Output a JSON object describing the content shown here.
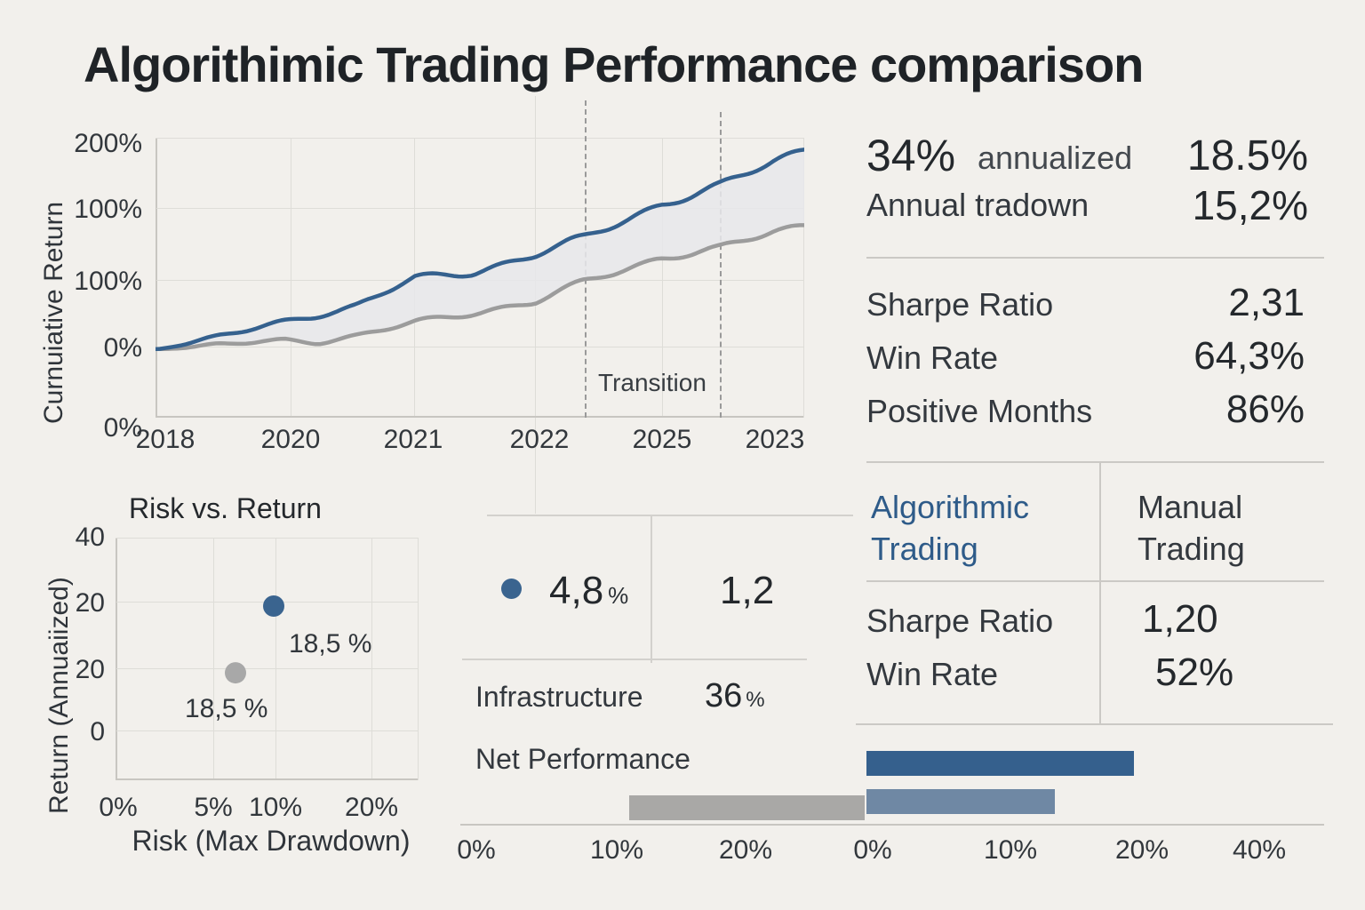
{
  "title": "Algorithimic Trading Performance comparison",
  "colors": {
    "accent_blue": "#35618e",
    "text_blue": "#2e5b89",
    "light_blue": "#6f88a4",
    "gray_series": "#9c9c9c",
    "gray_bar": "#a9a8a6",
    "background": "#f2f0ec"
  },
  "chart_data": [
    {
      "type": "line",
      "name": "cumulative-return",
      "ylabel": "Curnuiative Return",
      "y_ticks": [
        "200%",
        "100%",
        "100%",
        "0%",
        "0%"
      ],
      "x_ticks": [
        "2018",
        "2020",
        "2021",
        "2022",
        "2025",
        "2023"
      ],
      "annotation": "Transition",
      "grid": true,
      "series": [
        {
          "name": "algorithmic",
          "color": "#35618e",
          "path": [
            [
              0.004,
              0.755
            ],
            [
              0.1,
              0.71
            ],
            [
              0.2,
              0.657
            ],
            [
              0.31,
              0.6
            ],
            [
              0.4,
              0.502
            ],
            [
              0.49,
              0.48
            ],
            [
              0.585,
              0.419
            ],
            [
              0.662,
              0.356
            ],
            [
              0.778,
              0.238
            ],
            [
              0.87,
              0.175
            ],
            [
              0.955,
              0.08
            ],
            [
              1.0,
              0.042
            ]
          ]
        },
        {
          "name": "manual",
          "color": "#9c9c9c",
          "path": [
            [
              0.004,
              0.755
            ],
            [
              0.1,
              0.74
            ],
            [
              0.16,
              0.73
            ],
            [
              0.2,
              0.724
            ],
            [
              0.25,
              0.728
            ],
            [
              0.31,
              0.708
            ],
            [
              0.4,
              0.66
            ],
            [
              0.49,
              0.625
            ],
            [
              0.585,
              0.587
            ],
            [
              0.662,
              0.514
            ],
            [
              0.778,
              0.429
            ],
            [
              0.87,
              0.397
            ],
            [
              0.955,
              0.333
            ],
            [
              1.0,
              0.312
            ]
          ]
        }
      ]
    },
    {
      "type": "scatter",
      "name": "risk-vs-return",
      "title": "Risk vs. Return",
      "xlabel": "Risk (Max Drawdown)",
      "ylabel": "Return (Annuaiized)",
      "y_ticks": [
        "40",
        "20",
        "20",
        "0"
      ],
      "x_ticks": [
        "0%",
        "5%",
        "10%",
        "20%"
      ],
      "points": [
        {
          "name": "algorithmic",
          "color": "#3a648f",
          "x": 0.522,
          "y": 0.282,
          "label": "18,5 %"
        },
        {
          "name": "manual",
          "color": "#a8a8a8",
          "x": 0.396,
          "y": 0.557,
          "label": "18,5 %"
        }
      ]
    },
    {
      "type": "bar",
      "name": "net-performance",
      "left_axis_ticks": [
        "0%",
        "10%",
        "20%"
      ],
      "right_axis_ticks": [
        "0%",
        "10%",
        "20%",
        "40%"
      ],
      "bars": [
        {
          "name": "manual-gray",
          "axis": "left",
          "color": "#a9a8a6",
          "start_pct": 11.3,
          "end_pct": 28.6
        },
        {
          "name": "algorithmic-dark",
          "axis": "right",
          "color": "#35608d",
          "start_pct": 0,
          "end_pct": 19.4
        },
        {
          "name": "algorithmic-light",
          "axis": "right",
          "color": "#6f88a4",
          "start_pct": 0,
          "end_pct": 13.7
        }
      ]
    }
  ],
  "stats_top": {
    "headline_value": "34%",
    "headline_label": "annualized",
    "headline_value2": "18.5%",
    "row2_label": "Annual tradown",
    "row2_value": "15,2%",
    "rows": [
      {
        "label": "Sharpe Ratio",
        "value": "2,31"
      },
      {
        "label": "Win Rate",
        "value": "64,3%"
      },
      {
        "label": "Positive Months",
        "value": "86%"
      }
    ]
  },
  "comparison": {
    "col1": "Algorithmic Trading",
    "col2": "Manual Trading",
    "rows": [
      {
        "label": "Sharpe Ratio",
        "value": "1,20"
      },
      {
        "label": "Win Rate",
        "value": "52%"
      }
    ]
  },
  "middle": {
    "dot_value": "4,8",
    "dot_unit": "%",
    "secondary_value": "1,2",
    "infra_label": "Infrastructure",
    "infra_value": "36",
    "infra_unit": "%",
    "footer_label": "Net Performance"
  }
}
